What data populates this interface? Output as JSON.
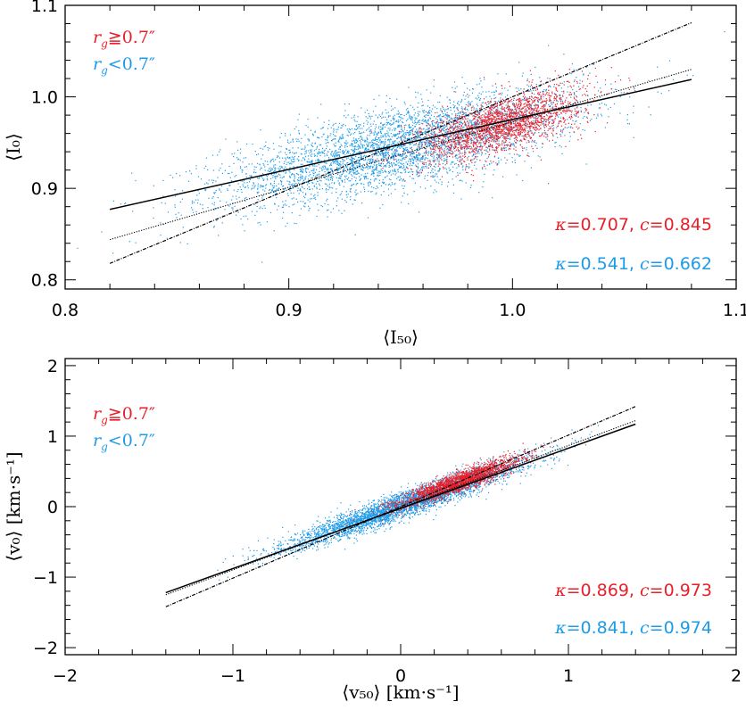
{
  "colors": {
    "red": "#e8202a",
    "blue": "#1e9be8",
    "line": "#000000"
  },
  "chart_data": [
    {
      "type": "scatter",
      "xlabel": "⟨I₅₀⟩",
      "ylabel": "⟨I₀⟩",
      "xlim": [
        0.8,
        1.1
      ],
      "ylim": [
        0.79,
        1.1
      ],
      "xticks": [
        "0.8",
        "0.9",
        "1.0",
        "1.1"
      ],
      "xtick_values": [
        0.8,
        0.9,
        1.0,
        1.1
      ],
      "yticks": [
        "0.8",
        "0.9",
        "1.0",
        "1.1"
      ],
      "ytick_values": [
        0.8,
        0.9,
        1.0,
        1.1
      ],
      "series": [
        {
          "name": "r_g≧0.7″",
          "color": "#e8202a",
          "kappa": "0.707",
          "c": "0.845",
          "cloud": {
            "x_center": 0.995,
            "y_center": 0.97,
            "x_spread": 0.018,
            "y_spread": 0.015,
            "slope": 0.7,
            "points": 2200
          }
        },
        {
          "name": "r_g<0.7″",
          "color": "#1e9be8",
          "kappa": "0.541",
          "c": "0.662",
          "cloud": {
            "x_center": 0.95,
            "y_center": 0.945,
            "x_spread": 0.04,
            "y_spread": 0.022,
            "slope": 0.54,
            "points": 4200
          }
        }
      ],
      "fit_lines": [
        {
          "style": "solid",
          "x": [
            0.82,
            1.08
          ],
          "y": [
            0.877,
            1.019
          ]
        },
        {
          "style": "dotted",
          "x": [
            0.82,
            1.08
          ],
          "y": [
            0.844,
            1.03
          ]
        },
        {
          "style": "dashdot",
          "x": [
            0.82,
            1.08
          ],
          "y": [
            0.818,
            1.081
          ]
        }
      ],
      "legend": [
        {
          "symbol": "r",
          "sub": "g",
          "text": "≧0.7″",
          "color": "#e8202a"
        },
        {
          "symbol": "r",
          "sub": "g",
          "text": "<0.7″",
          "color": "#1e9be8"
        }
      ],
      "stats": [
        {
          "kappa": "0.707",
          "c": "0.845",
          "color": "#e8202a"
        },
        {
          "kappa": "0.541",
          "c": "0.662",
          "color": "#1e9be8"
        }
      ]
    },
    {
      "type": "scatter",
      "xlabel": "⟨v₅₀⟩ [km·s⁻¹]",
      "ylabel": "⟨v₀⟩ [km·s⁻¹]",
      "xlim": [
        -2,
        2
      ],
      "ylim": [
        -2.1,
        2.1
      ],
      "xticks": [
        "−2",
        "−1",
        "0",
        "1",
        "2"
      ],
      "xtick_values": [
        -2,
        -1,
        0,
        1,
        2
      ],
      "yticks": [
        "−2",
        "−1",
        "0",
        "1",
        "2"
      ],
      "ytick_values": [
        -2,
        -1,
        0,
        1,
        2
      ],
      "series": [
        {
          "name": "r_g≧0.7″",
          "color": "#e8202a",
          "kappa": "0.869",
          "c": "0.973",
          "cloud": {
            "x_center": 0.35,
            "y_center": 0.35,
            "x_spread": 0.18,
            "y_spread": 0.07,
            "slope": 0.87,
            "points": 2200
          }
        },
        {
          "name": "r_g<0.7″",
          "color": "#1e9be8",
          "kappa": "0.841",
          "c": "0.974",
          "cloud": {
            "x_center": 0.05,
            "y_center": 0.05,
            "x_spread": 0.35,
            "y_spread": 0.09,
            "slope": 0.84,
            "points": 4200
          }
        }
      ],
      "fit_lines": [
        {
          "style": "solid",
          "x": [
            -1.4,
            1.4
          ],
          "y": [
            -1.22,
            1.17
          ]
        },
        {
          "style": "dotted",
          "x": [
            -1.4,
            1.4
          ],
          "y": [
            -1.25,
            1.22
          ]
        },
        {
          "style": "dashdot",
          "x": [
            -1.4,
            1.4
          ],
          "y": [
            -1.42,
            1.42
          ]
        }
      ],
      "legend": [
        {
          "symbol": "r",
          "sub": "g",
          "text": "≧0.7″",
          "color": "#e8202a"
        },
        {
          "symbol": "r",
          "sub": "g",
          "text": "<0.7″",
          "color": "#1e9be8"
        }
      ],
      "stats": [
        {
          "kappa": "0.869",
          "c": "0.973",
          "color": "#e8202a"
        },
        {
          "kappa": "0.841",
          "c": "0.974",
          "color": "#1e9be8"
        }
      ]
    }
  ]
}
